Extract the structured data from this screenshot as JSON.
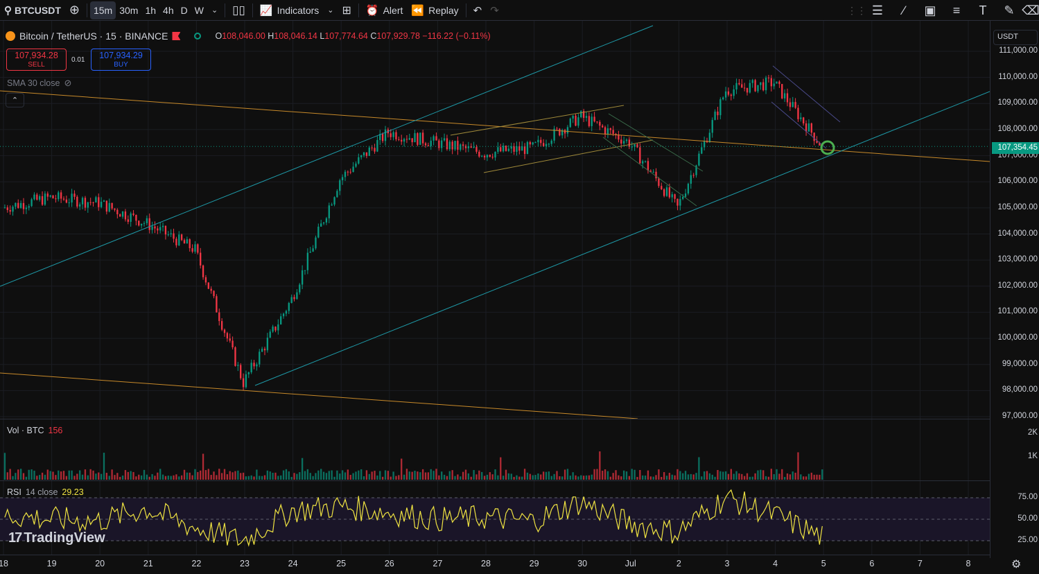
{
  "toolbar": {
    "symbol": "BTCUSDT",
    "intervals": [
      "15m",
      "30m",
      "1h",
      "4h",
      "D",
      "W"
    ],
    "active_interval": "15m",
    "indicators_label": "Indicators",
    "alert_label": "Alert",
    "replay_label": "Replay"
  },
  "legend": {
    "title": "Bitcoin / TetherUS · 15 · BINANCE",
    "o_label": "O",
    "o": "108,046.00",
    "h_label": "H",
    "h": "108,046.14",
    "l_label": "L",
    "l": "107,774.64",
    "c_label": "C",
    "c": "107,929.78",
    "change": "−116.22 (−0.11%)"
  },
  "trade": {
    "sell_price": "107,934.28",
    "sell_label": "SELL",
    "spread": "0.01",
    "buy_price": "107,934.29",
    "buy_label": "BUY"
  },
  "sma_label": "SMA 30 close",
  "currency": "USDT",
  "last_price": "107,354.45",
  "price_axis": [
    "111,000.00",
    "110,000.00",
    "109,000.00",
    "108,000.00",
    "107,000.00",
    "106,000.00",
    "105,000.00",
    "104,000.00",
    "103,000.00",
    "102,000.00",
    "101,000.00",
    "100,000.00",
    "99,000.00",
    "98,000.00",
    "97,000.00"
  ],
  "volume": {
    "label": "Vol · BTC",
    "value": "156",
    "axis": [
      "2K",
      "1K"
    ]
  },
  "rsi": {
    "label": "RSI",
    "params": "14 close",
    "value": "29.23",
    "axis": [
      "75.00",
      "50.00",
      "25.00"
    ]
  },
  "time_axis": [
    "18",
    "19",
    "20",
    "21",
    "22",
    "23",
    "24",
    "25",
    "26",
    "27",
    "28",
    "29",
    "30",
    "Jul",
    "2",
    "3",
    "4",
    "5",
    "6",
    "7",
    "8"
  ],
  "logo": "TradingView",
  "colors": {
    "up": "#089981",
    "down": "#f23645",
    "trendline_orange": "#c88a2a",
    "channel_teal": "#1e9aa8",
    "rsi": "#f0e442",
    "highlight": "#4caf50"
  },
  "chart_data": {
    "type": "candlestick",
    "title": "Bitcoin / TetherUS · 15 · BINANCE",
    "ylim": [
      97000,
      111200
    ],
    "x": [
      "18",
      "19",
      "20",
      "21",
      "22",
      "23",
      "24",
      "25",
      "26",
      "27",
      "28",
      "29",
      "30",
      "Jul",
      "2",
      "3",
      "4",
      "5"
    ],
    "series": [
      {
        "values": [
          105000,
          105400,
          105200,
          104400,
          103400,
          98300,
          101500,
          106100,
          107900,
          107500,
          107100,
          107300,
          108500,
          107500,
          105000,
          109500,
          109800,
          107354
        ]
      }
    ],
    "rsi_values": [
      55,
      50,
      48,
      62,
      40,
      25,
      60,
      65,
      58,
      50,
      52,
      48,
      70,
      45,
      35,
      75,
      55,
      29.23
    ],
    "rsi_ylim": [
      0,
      100
    ],
    "last_price": 107354.45
  }
}
